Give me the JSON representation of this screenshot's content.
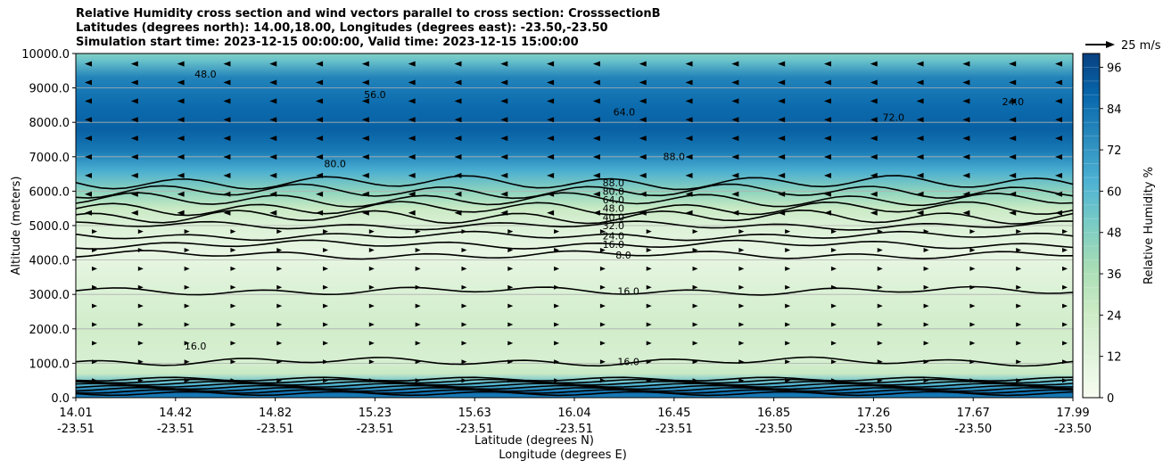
{
  "title": {
    "line1": "Relative Humidity cross section and wind vectors parallel to cross section: CrosssectionB",
    "line2": "Latitudes (degrees north): 14.00,18.00, Longitudes (degrees east): -23.50,-23.50",
    "line3": "Simulation start time: 2023-12-15 00:00:00, Valid time: 2023-12-15 15:00:00"
  },
  "quiver_key": {
    "label": "25 m/s"
  },
  "colors": {
    "colormap": [
      "#f7fcf0",
      "#e0f3db",
      "#ccebc5",
      "#a8ddb5",
      "#7bccc4",
      "#4eb3d3",
      "#2b8cbe",
      "#0868ac",
      "#084081"
    ]
  },
  "chart_data": {
    "type": "heatmap",
    "title": "Relative Humidity cross section and wind vectors parallel to cross section: CrosssectionB",
    "xlabel_lines": [
      "Latitude (degrees N)",
      "Longitude (degrees E)"
    ],
    "ylabel": "Altitude (meters)",
    "ylim": [
      0,
      10000
    ],
    "y_ticks": [
      {
        "value": 0,
        "label": "0.0"
      },
      {
        "value": 1000,
        "label": "1000.0"
      },
      {
        "value": 2000,
        "label": "2000.0"
      },
      {
        "value": 3000,
        "label": "3000.0"
      },
      {
        "value": 4000,
        "label": "4000.0"
      },
      {
        "value": 5000,
        "label": "5000.0"
      },
      {
        "value": 6000,
        "label": "6000.0"
      },
      {
        "value": 7000,
        "label": "7000.0"
      },
      {
        "value": 8000,
        "label": "8000.0"
      },
      {
        "value": 9000,
        "label": "9000.0"
      },
      {
        "value": 10000,
        "label": "10000.0"
      }
    ],
    "x_ticks": [
      {
        "lat": "14.01",
        "lon": "-23.51"
      },
      {
        "lat": "14.42",
        "lon": "-23.51"
      },
      {
        "lat": "14.82",
        "lon": "-23.51"
      },
      {
        "lat": "15.23",
        "lon": "-23.51"
      },
      {
        "lat": "15.63",
        "lon": "-23.51"
      },
      {
        "lat": "16.04",
        "lon": "-23.51"
      },
      {
        "lat": "16.45",
        "lon": "-23.51"
      },
      {
        "lat": "16.85",
        "lon": "-23.50"
      },
      {
        "lat": "17.26",
        "lon": "-23.50"
      },
      {
        "lat": "17.67",
        "lon": "-23.50"
      },
      {
        "lat": "17.99",
        "lon": "-23.50"
      }
    ],
    "colorbar": {
      "label": "Relative Humidity %",
      "range": [
        0,
        100
      ],
      "ticks": [
        0,
        12,
        24,
        36,
        48,
        60,
        72,
        84,
        96
      ]
    },
    "grid": "horizontal",
    "rh_profile": [
      {
        "z": 0,
        "rh": 80
      },
      {
        "z": 150,
        "rh": 85
      },
      {
        "z": 400,
        "rh": 60
      },
      {
        "z": 700,
        "rh": 26
      },
      {
        "z": 1100,
        "rh": 18
      },
      {
        "z": 2000,
        "rh": 22
      },
      {
        "z": 3000,
        "rh": 16
      },
      {
        "z": 4200,
        "rh": 8
      },
      {
        "z": 5000,
        "rh": 15
      },
      {
        "z": 5500,
        "rh": 26
      },
      {
        "z": 6000,
        "rh": 45
      },
      {
        "z": 6600,
        "rh": 64
      },
      {
        "z": 7200,
        "rh": 82
      },
      {
        "z": 7800,
        "rh": 90
      },
      {
        "z": 8500,
        "rh": 86
      },
      {
        "z": 9300,
        "rh": 78
      },
      {
        "z": 9800,
        "rh": 55
      },
      {
        "z": 10000,
        "rh": 48
      }
    ],
    "contour_levels": [
      {
        "z": 6250,
        "label": "88.0",
        "frac": 0.49
      },
      {
        "z": 6000,
        "label": "80.0",
        "frac": 0.49
      },
      {
        "z": 5750,
        "label": "64.0",
        "frac": 0.49
      },
      {
        "z": 5500,
        "label": "48.0",
        "frac": 0.49
      },
      {
        "z": 5250,
        "label": "40.0",
        "frac": 0.49
      },
      {
        "z": 5000,
        "label": "32.0",
        "frac": 0.49
      },
      {
        "z": 4700,
        "label": "24.0",
        "frac": 0.49
      },
      {
        "z": 4450,
        "label": "16.0",
        "frac": 0.49
      },
      {
        "z": 4150,
        "label": "8.0",
        "frac": 0.5
      },
      {
        "z": 3100,
        "label": "16.0",
        "frac": 0.505
      },
      {
        "z": 1050,
        "label": "16.0",
        "frac": 0.505
      }
    ],
    "annotations": [
      "48.0",
      "56.0",
      "64.0",
      "72.0",
      "80.0",
      "88.0",
      "24.0",
      "16.0"
    ]
  }
}
